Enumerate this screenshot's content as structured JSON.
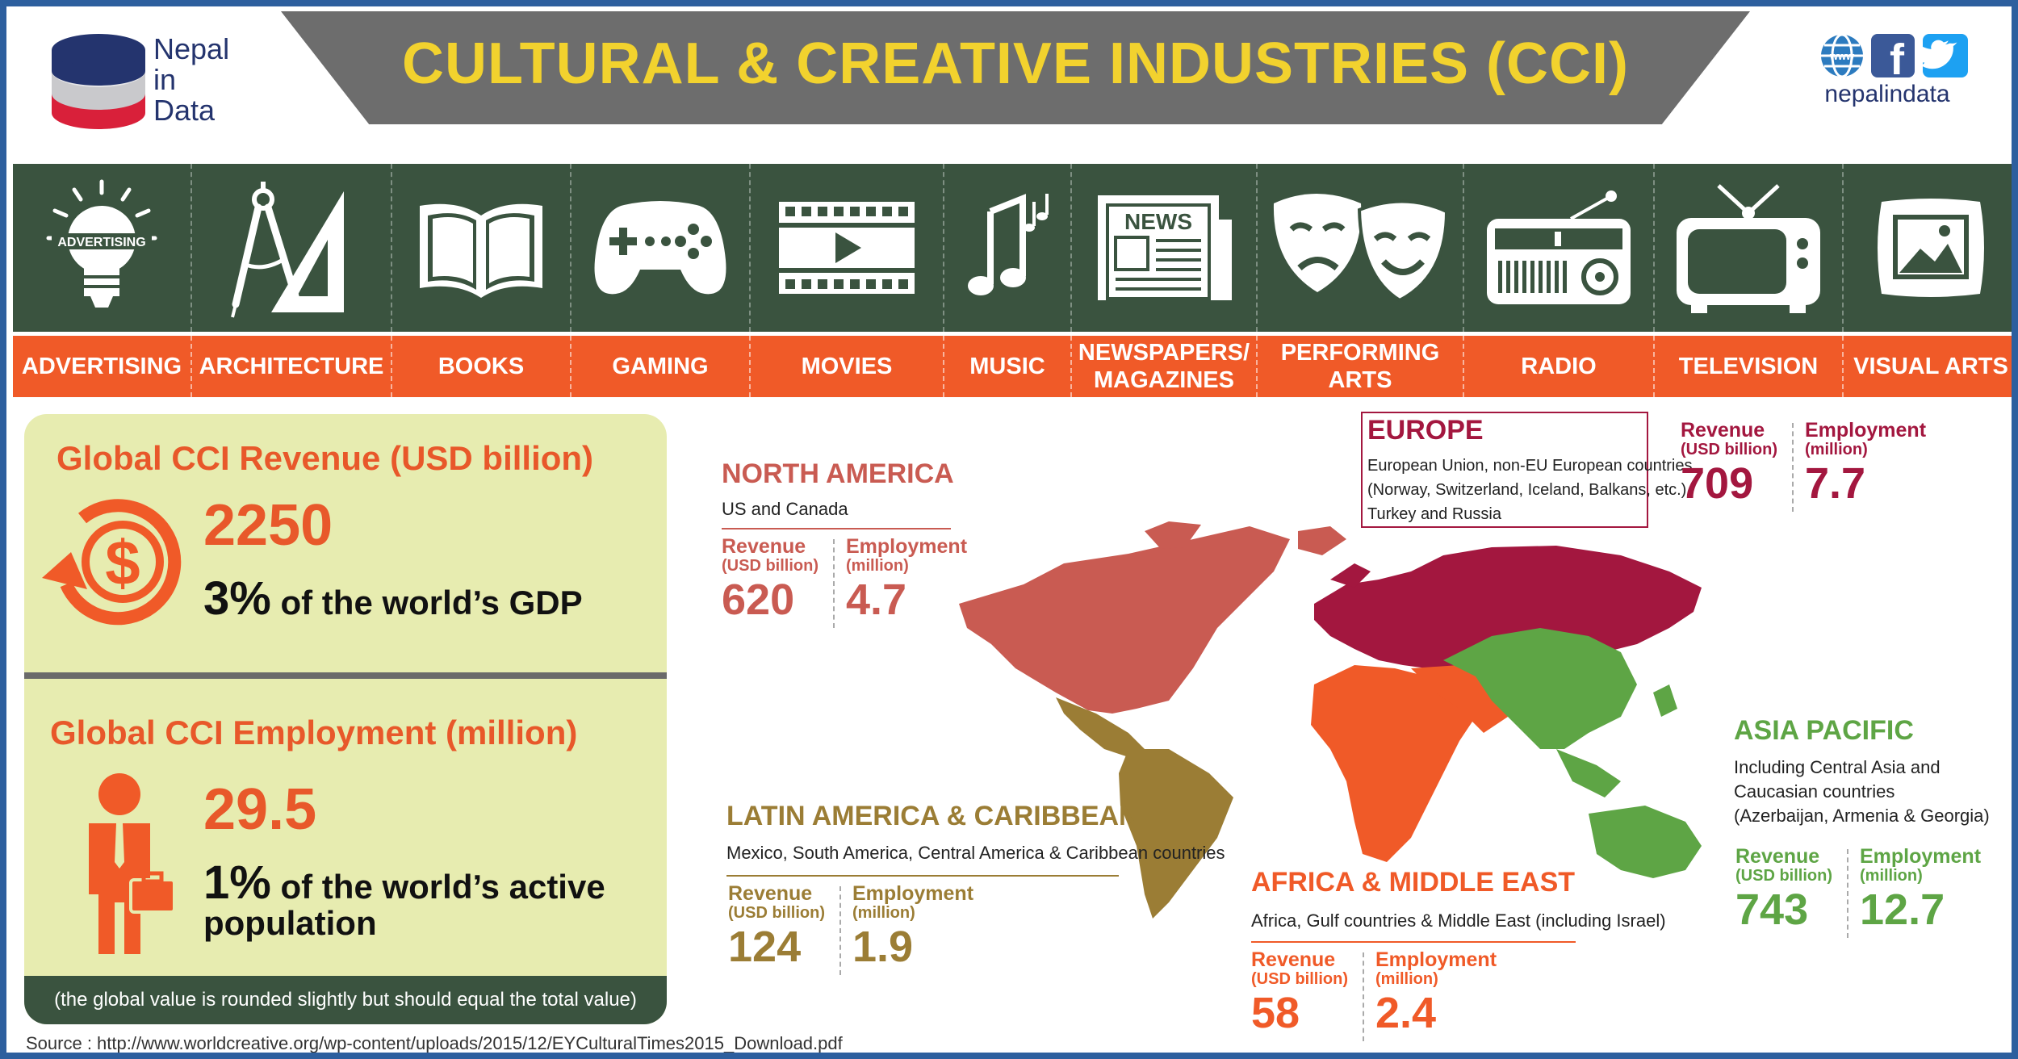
{
  "header": {
    "title": "CULTURAL & CREATIVE INDUSTRIES (CCI)",
    "logo_lines": [
      "Nepal",
      "in",
      "Data"
    ],
    "brand_url": "nepalindata",
    "advertising_bulb_label": "ADVERTISING",
    "news_icon_label": "NEWS"
  },
  "categories": [
    {
      "label": "ADVERTISING",
      "icon": "lightbulb-icon"
    },
    {
      "label": "ARCHITECTURE",
      "icon": "compass-ruler-icon"
    },
    {
      "label": "BOOKS",
      "icon": "open-book-icon"
    },
    {
      "label": "GAMING",
      "icon": "gamepad-icon"
    },
    {
      "label": "MOVIES",
      "icon": "film-play-icon"
    },
    {
      "label": "MUSIC",
      "icon": "music-notes-icon"
    },
    {
      "label": "NEWSPAPERS/\nMAGAZINES",
      "icon": "newspaper-icon"
    },
    {
      "label": "PERFORMING\nARTS",
      "icon": "theater-masks-icon"
    },
    {
      "label": "RADIO",
      "icon": "radio-icon"
    },
    {
      "label": "TELEVISION",
      "icon": "television-icon"
    },
    {
      "label": "VISUAL ARTS",
      "icon": "picture-frame-icon"
    }
  ],
  "global": {
    "revenue_heading": "Global CCI Revenue (USD billion)",
    "revenue_value": "2250",
    "revenue_pct": "3%",
    "revenue_pct_text": " of the world’s GDP",
    "employment_heading": "Global CCI Employment (million)",
    "employment_value": "29.5",
    "employment_pct": "1%",
    "employment_pct_text": " of the world’s active",
    "employment_pct_text2": "population",
    "note": "(the global value is rounded slightly but should equal the total value)"
  },
  "stat_labels": {
    "revenue": "Revenue",
    "revenue_unit": "(USD billion)",
    "employment": "Employment",
    "employment_unit": "(million)"
  },
  "regions": {
    "north_america": {
      "name": "NORTH AMERICA",
      "desc": [
        "US and Canada"
      ],
      "revenue": "620",
      "employment": "4.7",
      "color": "#c95b52"
    },
    "europe": {
      "name": "EUROPE",
      "desc": [
        "European Union, non-EU European countries",
        "(Norway, Switzerland, Iceland, Balkans, etc.),",
        "Turkey and Russia"
      ],
      "revenue": "709",
      "employment": "7.7",
      "color": "#a3173f"
    },
    "latin_america": {
      "name": "LATIN AMERICA & CARIBBEAN",
      "desc": [
        "Mexico, South America, Central America & Caribbean countries"
      ],
      "revenue": "124",
      "employment": "1.9",
      "color": "#9b7d35"
    },
    "africa_me": {
      "name": "AFRICA & MIDDLE EAST",
      "desc": [
        "Africa, Gulf countries & Middle East (including Israel)"
      ],
      "revenue": "58",
      "employment": "2.4",
      "color": "#f05a28"
    },
    "asia_pacific": {
      "name": "ASIA PACIFIC",
      "desc": [
        "Including Central Asia and",
        "Caucasian countries",
        "(Azerbaijan, Armenia & Georgia)"
      ],
      "revenue": "743",
      "employment": "12.7",
      "color": "#5ea545"
    }
  },
  "source": "Source : http://www.worldcreative.org/wp-content/uploads/2015/12/EYCulturalTimes2015_Download.pdf",
  "colors": {
    "frame": "#2d5f9e",
    "band_green": "#3a533f",
    "band_orange": "#f05a28",
    "title_yellow": "#f2d22e",
    "panel_bg": "#e7ecb0"
  }
}
